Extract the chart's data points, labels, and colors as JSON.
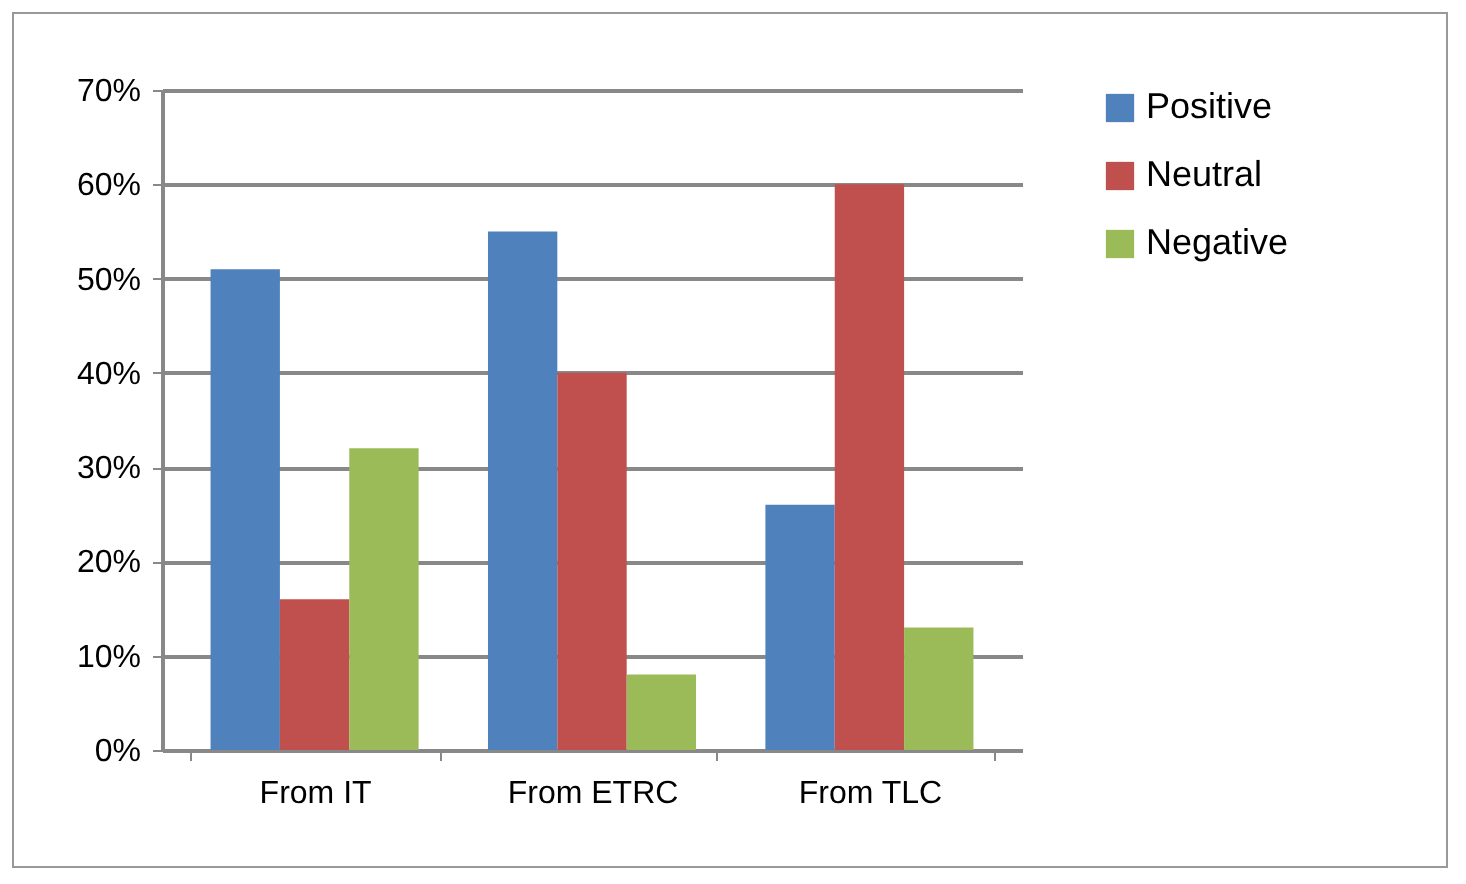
{
  "chart_data": {
    "type": "bar",
    "categories": [
      "From IT",
      "From ETRC",
      "From TLC"
    ],
    "series": [
      {
        "name": "Positive",
        "color": "#4f81bd",
        "values": [
          0.51,
          0.55,
          0.26
        ]
      },
      {
        "name": "Neutral",
        "color": "#c0504d",
        "values": [
          0.16,
          0.4,
          0.6
        ]
      },
      {
        "name": "Negative",
        "color": "#9bbb59",
        "values": [
          0.32,
          0.08,
          0.13
        ]
      }
    ],
    "ylim": [
      0,
      0.7
    ],
    "yticks": [
      {
        "value": 0,
        "label": "0%"
      },
      {
        "value": 0.1,
        "label": "10%"
      },
      {
        "value": 0.2,
        "label": "20%"
      },
      {
        "value": 0.3,
        "label": "30%"
      },
      {
        "value": 0.4,
        "label": "40%"
      },
      {
        "value": 0.5,
        "label": "50%"
      },
      {
        "value": 0.6,
        "label": "60%"
      },
      {
        "value": 0.7,
        "label": "70%"
      }
    ],
    "grid": "y",
    "legend": "right"
  }
}
